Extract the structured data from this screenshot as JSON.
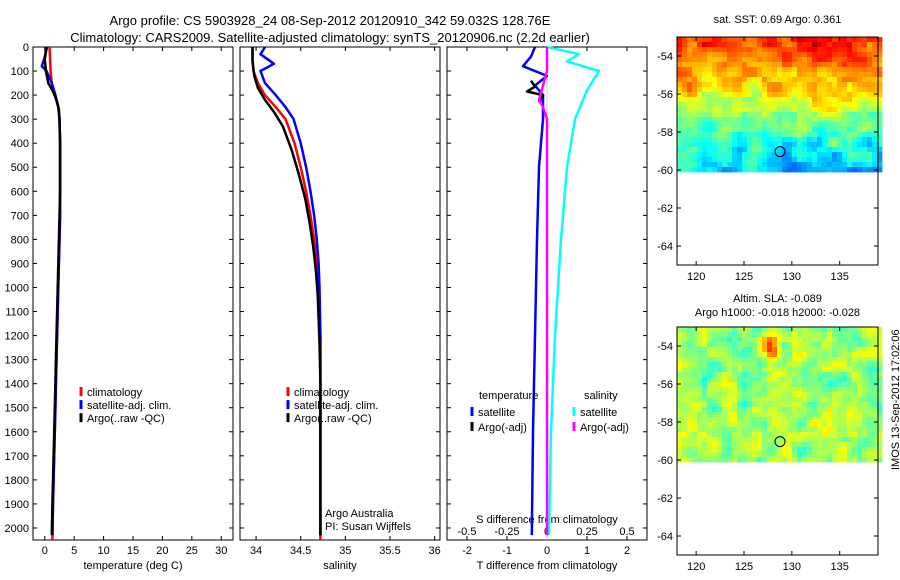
{
  "title_line1": "Argo profile: CS 5903928_24 08-Sep-2012 20120910_342 59.032S 128.76E",
  "title_line2": "Climatology: CARS2009. Satellite-adjusted climatology: synTS_20120906.nc (2.2d earlier)",
  "side_label": "IMOS 13-Sep-2012 17:02:06",
  "colors": {
    "climatology": "#ff0000",
    "satellite": "#0000ff",
    "argo": "#000000",
    "satellite_salinity": "#00ffff",
    "argo_salinity": "#ff00ff"
  },
  "chart_data": [
    {
      "type": "line",
      "panel": "temperature",
      "xlabel": "temperature (deg C)",
      "ylabel": "",
      "xlim": [
        -2,
        32
      ],
      "ylim": [
        2050,
        0
      ],
      "xticks": [
        0,
        5,
        10,
        15,
        20,
        25,
        30
      ],
      "yticks": [
        0,
        100,
        200,
        300,
        400,
        500,
        600,
        700,
        800,
        900,
        1000,
        1100,
        1200,
        1300,
        1400,
        1500,
        1600,
        1700,
        1800,
        1900,
        2000
      ],
      "legend": {
        "placement": "lower-right",
        "entries": [
          "climatology",
          "satellite-adj. clim.",
          "Argo(..raw -QC)"
        ]
      },
      "series": [
        {
          "name": "climatology",
          "color": "#ff0000",
          "points": [
            [
              0.8,
              0
            ],
            [
              0.9,
              50
            ],
            [
              1.0,
              100
            ],
            [
              1.2,
              150
            ],
            [
              1.7,
              200
            ],
            [
              2.3,
              250
            ],
            [
              2.5,
              300
            ],
            [
              2.6,
              400
            ],
            [
              2.6,
              500
            ],
            [
              2.6,
              600
            ],
            [
              2.6,
              700
            ],
            [
              2.5,
              800
            ],
            [
              2.4,
              900
            ],
            [
              2.3,
              1000
            ],
            [
              2.2,
              1100
            ],
            [
              2.1,
              1200
            ],
            [
              2.0,
              1300
            ],
            [
              1.9,
              1400
            ],
            [
              1.8,
              1500
            ],
            [
              1.7,
              1600
            ],
            [
              1.6,
              1700
            ],
            [
              1.5,
              1800
            ],
            [
              1.4,
              1900
            ],
            [
              1.3,
              2050
            ]
          ]
        },
        {
          "name": "satellite-adj. clim.",
          "color": "#0000ff",
          "points": [
            [
              0.4,
              0
            ],
            [
              -0.1,
              50
            ],
            [
              -0.5,
              80
            ],
            [
              0.3,
              100
            ],
            [
              1.2,
              150
            ],
            [
              1.8,
              200
            ],
            [
              2.3,
              250
            ],
            [
              2.5,
              300
            ],
            [
              2.6,
              400
            ],
            [
              2.6,
              500
            ],
            [
              2.6,
              600
            ],
            [
              2.6,
              700
            ],
            [
              2.5,
              800
            ],
            [
              2.4,
              900
            ],
            [
              2.3,
              1000
            ],
            [
              2.2,
              1100
            ],
            [
              2.1,
              1200
            ],
            [
              2.0,
              1300
            ],
            [
              1.9,
              1400
            ],
            [
              1.8,
              1500
            ],
            [
              1.7,
              1600
            ],
            [
              1.6,
              1700
            ],
            [
              1.5,
              1800
            ],
            [
              1.4,
              1900
            ],
            [
              1.3,
              2030
            ]
          ]
        },
        {
          "name": "Argo(..raw -QC)",
          "color": "#000000",
          "points": [
            [
              0.3,
              0
            ],
            [
              0.0,
              50
            ],
            [
              0.2,
              100
            ],
            [
              0.6,
              150
            ],
            [
              1.3,
              180
            ],
            [
              2.0,
              220
            ],
            [
              2.4,
              260
            ],
            [
              2.5,
              300
            ],
            [
              2.6,
              400
            ],
            [
              2.6,
              500
            ],
            [
              2.6,
              600
            ],
            [
              2.5,
              700
            ],
            [
              2.4,
              800
            ],
            [
              2.3,
              900
            ],
            [
              2.2,
              1000
            ],
            [
              2.1,
              1100
            ],
            [
              2.0,
              1200
            ],
            [
              1.9,
              1300
            ],
            [
              1.8,
              1400
            ],
            [
              1.7,
              1500
            ],
            [
              1.6,
              1600
            ],
            [
              1.5,
              1700
            ],
            [
              1.4,
              1800
            ],
            [
              1.3,
              1900
            ],
            [
              1.2,
              2030
            ]
          ]
        }
      ]
    },
    {
      "type": "line",
      "panel": "salinity",
      "xlabel": "salinity",
      "ylabel": "",
      "xlim": [
        33.82,
        36.06
      ],
      "ylim": [
        2050,
        0
      ],
      "xticks": [
        34,
        34.5,
        35,
        35.5,
        36
      ],
      "legend": {
        "placement": "lower-right",
        "entries": [
          "climatology",
          "satellite-adj. clim.",
          "Argo(..raw -QC)"
        ]
      },
      "annotations": [
        "Argo Australia",
        "PI: Susan Wijffels"
      ],
      "series": [
        {
          "name": "climatology",
          "color": "#ff0000",
          "points": [
            [
              33.96,
              0
            ],
            [
              33.96,
              50
            ],
            [
              33.97,
              100
            ],
            [
              34.02,
              150
            ],
            [
              34.1,
              200
            ],
            [
              34.22,
              250
            ],
            [
              34.33,
              300
            ],
            [
              34.43,
              400
            ],
            [
              34.5,
              500
            ],
            [
              34.56,
              600
            ],
            [
              34.61,
              700
            ],
            [
              34.65,
              800
            ],
            [
              34.68,
              900
            ],
            [
              34.7,
              1000
            ],
            [
              34.71,
              1100
            ],
            [
              34.72,
              1200
            ],
            [
              34.72,
              1400
            ],
            [
              34.72,
              1600
            ],
            [
              34.72,
              1800
            ],
            [
              34.72,
              2050
            ]
          ]
        },
        {
          "name": "satellite-adj. clim.",
          "color": "#0000ff",
          "points": [
            [
              34.1,
              0
            ],
            [
              34.05,
              30
            ],
            [
              34.2,
              70
            ],
            [
              34.05,
              100
            ],
            [
              34.1,
              150
            ],
            [
              34.22,
              200
            ],
            [
              34.33,
              250
            ],
            [
              34.42,
              300
            ],
            [
              34.5,
              400
            ],
            [
              34.56,
              500
            ],
            [
              34.61,
              600
            ],
            [
              34.65,
              700
            ],
            [
              34.68,
              800
            ],
            [
              34.7,
              900
            ],
            [
              34.71,
              1000
            ],
            [
              34.72,
              1200
            ],
            [
              34.72,
              1500
            ],
            [
              34.72,
              1800
            ],
            [
              34.72,
              2030
            ]
          ]
        },
        {
          "name": "Argo(..raw -QC)",
          "color": "#000000",
          "points": [
            [
              33.96,
              0
            ],
            [
              33.96,
              60
            ],
            [
              33.98,
              120
            ],
            [
              34.02,
              170
            ],
            [
              34.1,
              220
            ],
            [
              34.2,
              270
            ],
            [
              34.3,
              330
            ],
            [
              34.4,
              430
            ],
            [
              34.48,
              530
            ],
            [
              34.55,
              630
            ],
            [
              34.6,
              730
            ],
            [
              34.64,
              830
            ],
            [
              34.67,
              930
            ],
            [
              34.69,
              1030
            ],
            [
              34.7,
              1130
            ],
            [
              34.71,
              1230
            ],
            [
              34.72,
              1400
            ],
            [
              34.72,
              1700
            ],
            [
              34.72,
              2030
            ]
          ]
        }
      ]
    },
    {
      "type": "line",
      "panel": "difference",
      "xlabel": "T difference from climatology",
      "xlabel_top": "S difference from climatology",
      "ylabel": "",
      "xlim": [
        -2.5,
        2.5
      ],
      "ylim": [
        2050,
        0
      ],
      "xticks": [
        -2,
        -1,
        0,
        1,
        2
      ],
      "xticks_top": [
        "-0.5",
        "-0.25",
        "0",
        "0.25",
        "0.5"
      ],
      "legend": {
        "placement": "lower-middle",
        "group_titles": [
          "temperature",
          "salinity"
        ],
        "entries": [
          "satellite",
          "Argo(-adj)",
          "satellite",
          "Argo(-adj)"
        ]
      },
      "series": [
        {
          "name": "satellite",
          "group": "temperature",
          "color": "#0000ff",
          "points": [
            [
              -0.3,
              0
            ],
            [
              -0.4,
              40
            ],
            [
              -0.6,
              80
            ],
            [
              0.0,
              120
            ],
            [
              -0.3,
              160
            ],
            [
              -0.1,
              200
            ],
            [
              -0.1,
              300
            ],
            [
              -0.2,
              500
            ],
            [
              -0.25,
              800
            ],
            [
              -0.3,
              1200
            ],
            [
              -0.35,
              1600
            ],
            [
              -0.38,
              2030
            ]
          ]
        },
        {
          "name": "Argo(-adj)",
          "group": "temperature",
          "color": "#000000",
          "points": [
            [
              -0.4,
              140
            ],
            [
              -0.3,
              165
            ],
            [
              -0.5,
              185
            ],
            [
              -0.1,
              200
            ],
            [
              -0.2,
              230
            ]
          ]
        },
        {
          "name": "satellite",
          "group": "salinity",
          "color": "#00ffff",
          "points": [
            [
              0.0,
              0
            ],
            [
              0.8,
              30
            ],
            [
              0.5,
              60
            ],
            [
              1.3,
              100
            ],
            [
              1.0,
              180
            ],
            [
              0.7,
              300
            ],
            [
              0.5,
              500
            ],
            [
              0.35,
              800
            ],
            [
              0.2,
              1200
            ],
            [
              0.1,
              1600
            ],
            [
              0.05,
              2030
            ]
          ]
        },
        {
          "name": "Argo(-adj)",
          "group": "salinity",
          "color": "#ff00ff",
          "points": [
            [
              0.0,
              0
            ],
            [
              0.0,
              100
            ],
            [
              -0.1,
              160
            ],
            [
              -0.2,
              220
            ],
            [
              -0.1,
              250
            ],
            [
              0.0,
              300
            ],
            [
              0.0,
              2030
            ]
          ]
        }
      ]
    },
    {
      "type": "heatmap",
      "panel": "sst-map",
      "title": "sat. SST: 0.69 Argo: 0.361",
      "xlim": [
        118,
        139
      ],
      "ylim": [
        -65,
        -53
      ],
      "xticks": [
        120,
        125,
        130,
        135
      ],
      "yticks": [
        -54,
        -56,
        -58,
        -60,
        -62,
        -64
      ],
      "data_extent_lat": [
        -60,
        -53
      ],
      "marker": {
        "lon": 128.76,
        "lat": -59.032
      }
    },
    {
      "type": "heatmap",
      "panel": "sla-map",
      "title_line1": "Altim. SLA: -0.089",
      "title_line2": "Argo h1000: -0.018 h2000: -0.028",
      "xlim": [
        118,
        139
      ],
      "ylim": [
        -65,
        -53
      ],
      "xticks": [
        120,
        125,
        130,
        135
      ],
      "yticks": [
        -54,
        -56,
        -58,
        -60,
        -62,
        -64
      ],
      "data_extent_lat": [
        -60,
        -53
      ],
      "marker": {
        "lon": 128.76,
        "lat": -59.032
      }
    }
  ]
}
